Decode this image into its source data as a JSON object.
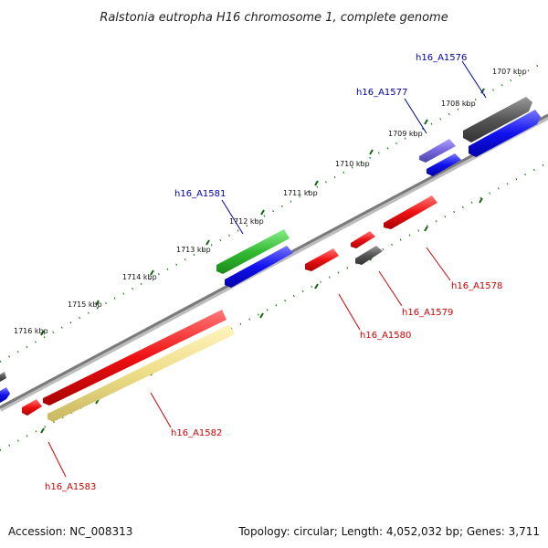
{
  "title": "Ralstonia eutropha H16 chromosome 1, complete genome",
  "accession_text": "Accession: NC_008313",
  "topology_text": "Topology: circular; Length: 4,052,032 bp; Genes: 3,711",
  "scale_labels": [
    "1707 kbp",
    "1708 kbp",
    "1709 kbp",
    "1710 kbp",
    "1711 kbp",
    "1712 kbp",
    "1713 kbp",
    "1714 kbp",
    "1715 kbp",
    "1716 kbp"
  ],
  "genes_top": [
    "h16_A1576",
    "h16_A1577",
    "h16_A1581"
  ],
  "genes_bottom": [
    "h16_A1578",
    "h16_A1579",
    "h16_A1580",
    "h16_A1582",
    "h16_A1583"
  ],
  "colors": {
    "backbone": "#7a7a7a",
    "red": "#ee1111",
    "blue": "#1111ee",
    "gray": "#555555",
    "green": "#33bb33",
    "purple": "#7766dd",
    "yellow": "#eedd88",
    "tick_green": "#116611",
    "label_blue": "#0000aa",
    "label_red": "#cc0000"
  }
}
